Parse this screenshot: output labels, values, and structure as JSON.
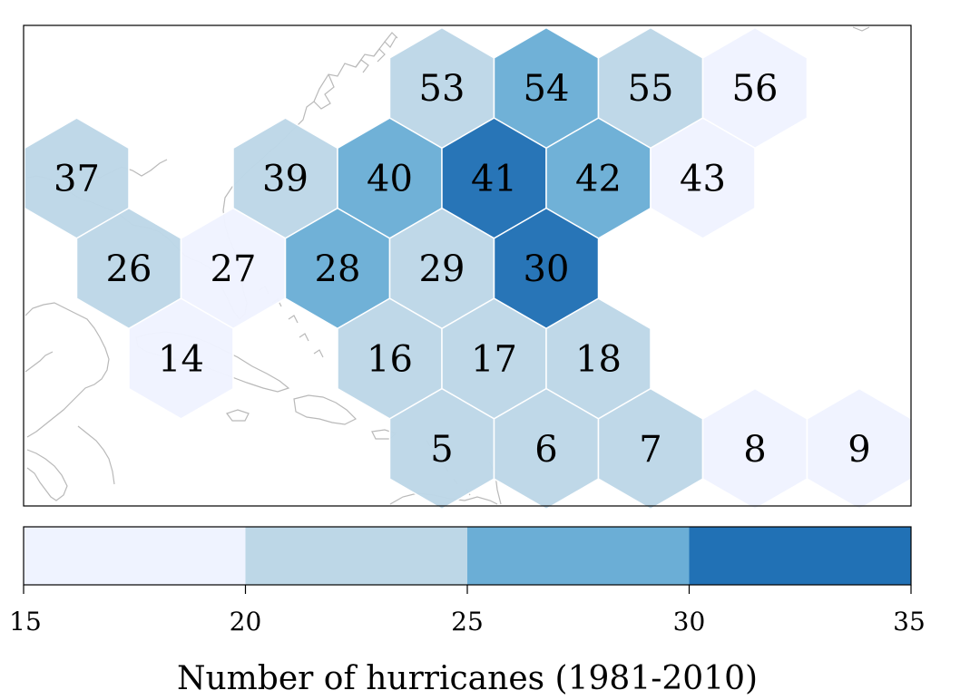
{
  "map": {
    "region": "North Atlantic / Caribbean",
    "hex_colors": [
      "#eff3ff",
      "#bdd7e7",
      "#6baed6",
      "#2171b5"
    ],
    "coastline_color": "#b9b9b9"
  },
  "chart_data": {
    "type": "heatmap",
    "hexes": [
      {
        "label": "53",
        "col": 0,
        "row": 0,
        "value": 22.5
      },
      {
        "label": "54",
        "col": 1,
        "row": 0,
        "value": 27.5
      },
      {
        "label": "55",
        "col": 2,
        "row": 0,
        "value": 22.5
      },
      {
        "label": "56",
        "col": 3,
        "row": 0,
        "value": 17.5
      },
      {
        "label": "37",
        "col": -3.5,
        "row": 1,
        "value": 22.5
      },
      {
        "label": "39",
        "col": -1.5,
        "row": 1,
        "value": 22.5
      },
      {
        "label": "40",
        "col": -0.5,
        "row": 1,
        "value": 27.5
      },
      {
        "label": "41",
        "col": 0.5,
        "row": 1,
        "value": 32.5
      },
      {
        "label": "42",
        "col": 1.5,
        "row": 1,
        "value": 27.5
      },
      {
        "label": "43",
        "col": 2.5,
        "row": 1,
        "value": 17.5
      },
      {
        "label": "26",
        "col": -3,
        "row": 2,
        "value": 22.5
      },
      {
        "label": "27",
        "col": -2,
        "row": 2,
        "value": 17.5
      },
      {
        "label": "28",
        "col": -1,
        "row": 2,
        "value": 27.5
      },
      {
        "label": "29",
        "col": 0,
        "row": 2,
        "value": 22.5
      },
      {
        "label": "30",
        "col": 1,
        "row": 2,
        "value": 32.5
      },
      {
        "label": "14",
        "col": -2.5,
        "row": 3,
        "value": 17.5
      },
      {
        "label": "16",
        "col": -0.5,
        "row": 3,
        "value": 22.5
      },
      {
        "label": "17",
        "col": 0.5,
        "row": 3,
        "value": 22.5
      },
      {
        "label": "18",
        "col": 1.5,
        "row": 3,
        "value": 22.5
      },
      {
        "label": "5",
        "col": 0,
        "row": 4,
        "value": 22.5
      },
      {
        "label": "6",
        "col": 1,
        "row": 4,
        "value": 22.5
      },
      {
        "label": "7",
        "col": 2,
        "row": 4,
        "value": 22.5
      },
      {
        "label": "8",
        "col": 3,
        "row": 4,
        "value": 17.5
      },
      {
        "label": "9",
        "col": 4,
        "row": 4,
        "value": 17.5
      }
    ],
    "colorbar": {
      "bins": [
        15,
        20,
        25,
        30,
        35
      ],
      "tick_labels": [
        "15",
        "20",
        "25",
        "30",
        "35"
      ],
      "title": "Number of hurricanes (1981-2010)"
    }
  }
}
